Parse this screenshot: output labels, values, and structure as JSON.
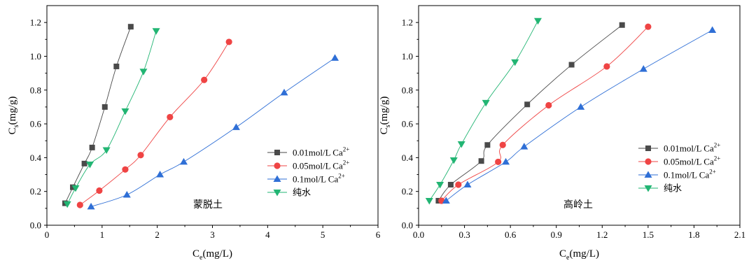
{
  "figure": {
    "colors": {
      "s001": "#4a4a4a",
      "s005": "#ef4444",
      "s01": "#2f6fd6",
      "water": "#22b573"
    }
  },
  "chart_data": [
    {
      "type": "scatter",
      "annotation": "蒙脱土",
      "xlabel": {
        "main": "C",
        "sub": "e",
        "unit": "(mg/L)"
      },
      "ylabel": {
        "main": "C",
        "sub": "s",
        "unit": "(mg/g)"
      },
      "xlim": [
        0,
        6
      ],
      "ylim": [
        0,
        1.3
      ],
      "x_ticks": [
        0,
        1,
        2,
        3,
        4,
        5,
        6
      ],
      "x_tick_labels": [
        "0",
        "1",
        "2",
        "3",
        "4",
        "5",
        "6"
      ],
      "y_ticks": [
        0,
        0.2,
        0.4,
        0.6,
        0.8,
        1.0,
        1.2
      ],
      "y_tick_labels": [
        "0.0",
        "0.2",
        "0.4",
        "0.6",
        "0.8",
        "1.0",
        "1.2"
      ],
      "grid": false,
      "legend_position": "right-middle",
      "series": [
        {
          "key": "s001",
          "name": "0.01mol/L Ca",
          "superscript": "2+",
          "marker": "square",
          "color": "#4a4a4a",
          "x": [
            0.33,
            0.47,
            0.68,
            0.82,
            1.05,
            1.26,
            1.52
          ],
          "y": [
            0.13,
            0.225,
            0.365,
            0.46,
            0.7,
            0.94,
            1.175
          ]
        },
        {
          "key": "s005",
          "name": "0.05mol/L Ca",
          "superscript": "2+",
          "marker": "circle",
          "color": "#ef4444",
          "x": [
            0.6,
            0.95,
            1.42,
            1.7,
            2.23,
            2.85,
            3.3
          ],
          "y": [
            0.12,
            0.205,
            0.33,
            0.415,
            0.64,
            0.86,
            1.085
          ]
        },
        {
          "key": "s01",
          "name": "0.1mol/L Ca",
          "superscript": "2+",
          "marker": "triangle-up",
          "color": "#2f6fd6",
          "x": [
            0.8,
            1.45,
            2.05,
            2.48,
            3.43,
            4.3,
            5.22
          ],
          "y": [
            0.11,
            0.18,
            0.3,
            0.375,
            0.58,
            0.785,
            0.99
          ]
        },
        {
          "key": "water",
          "name": "纯水",
          "superscript": "",
          "marker": "triangle-down",
          "color": "#22b573",
          "x": [
            0.37,
            0.52,
            0.78,
            1.08,
            1.42,
            1.75,
            1.98
          ],
          "y": [
            0.125,
            0.22,
            0.36,
            0.445,
            0.675,
            0.91,
            1.15
          ]
        }
      ]
    },
    {
      "type": "scatter",
      "annotation": "高岭土",
      "xlabel": {
        "main": "C",
        "sub": "e",
        "unit": "(mg/L)"
      },
      "ylabel": {
        "main": "C",
        "sub": "s",
        "unit": "(mg/g)"
      },
      "xlim": [
        0,
        2.1
      ],
      "ylim": [
        0,
        1.3
      ],
      "x_ticks": [
        0,
        0.3,
        0.6,
        0.9,
        1.2,
        1.5,
        1.8,
        2.1
      ],
      "x_tick_labels": [
        "0.0",
        "0.3",
        "0.6",
        "0.9",
        "1.2",
        "1.5",
        "1.8",
        "2.1"
      ],
      "y_ticks": [
        0,
        0.2,
        0.4,
        0.6,
        0.8,
        1.0,
        1.2
      ],
      "y_tick_labels": [
        "0.0",
        "0.2",
        "0.4",
        "0.6",
        "0.8",
        "1.0",
        "1.2"
      ],
      "grid": false,
      "legend_position": "right-middle",
      "series": [
        {
          "key": "s001",
          "name": "0.01mol/L Ca",
          "superscript": "2+",
          "marker": "square",
          "color": "#4a4a4a",
          "x": [
            0.13,
            0.21,
            0.41,
            0.45,
            0.71,
            1.0,
            1.33
          ],
          "y": [
            0.145,
            0.24,
            0.38,
            0.475,
            0.715,
            0.95,
            1.185
          ]
        },
        {
          "key": "s005",
          "name": "0.05mol/L Ca",
          "superscript": "2+",
          "marker": "circle",
          "color": "#ef4444",
          "x": [
            0.15,
            0.26,
            0.52,
            0.55,
            0.85,
            1.23,
            1.5
          ],
          "y": [
            0.145,
            0.24,
            0.375,
            0.475,
            0.71,
            0.94,
            1.175
          ]
        },
        {
          "key": "s01",
          "name": "0.1mol/L Ca",
          "superscript": "2+",
          "marker": "triangle-up",
          "color": "#2f6fd6",
          "x": [
            0.18,
            0.32,
            0.57,
            0.69,
            1.06,
            1.47,
            1.92
          ],
          "y": [
            0.145,
            0.24,
            0.375,
            0.465,
            0.7,
            0.925,
            1.155
          ]
        },
        {
          "key": "water",
          "name": "纯水",
          "superscript": "",
          "marker": "triangle-down",
          "color": "#22b573",
          "x": [
            0.07,
            0.14,
            0.23,
            0.28,
            0.44,
            0.63,
            0.78
          ],
          "y": [
            0.145,
            0.24,
            0.385,
            0.48,
            0.725,
            0.965,
            1.21
          ]
        }
      ]
    }
  ]
}
